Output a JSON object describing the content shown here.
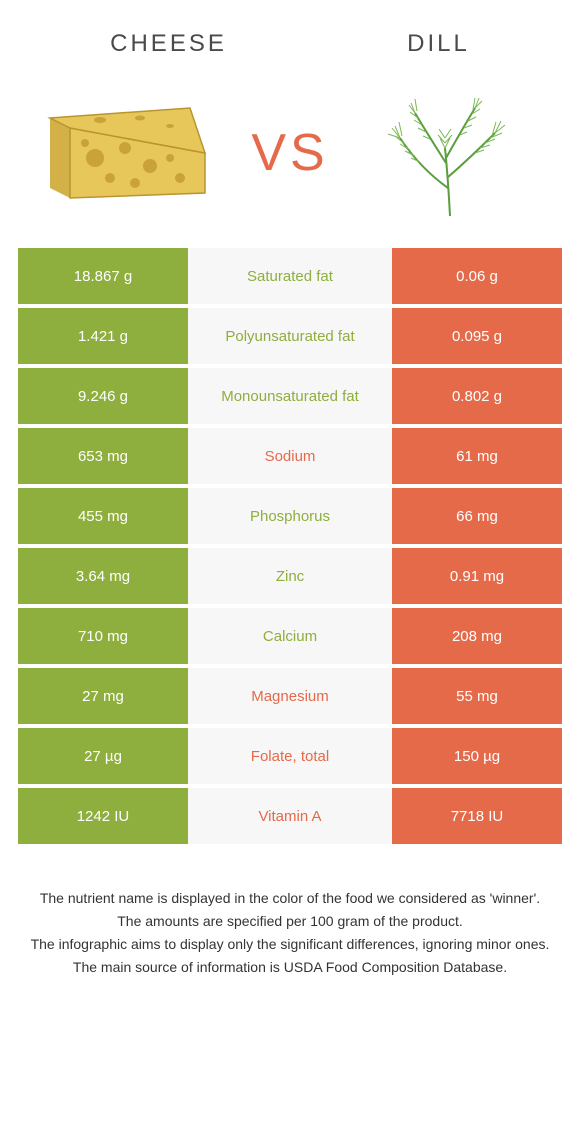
{
  "header": {
    "left_title": "Cheese",
    "right_title": "Dill",
    "vs": "VS"
  },
  "colors": {
    "cheese_bg": "#8eae3e",
    "dill_bg": "#e46a4a",
    "mid_bg": "#f7f7f7",
    "label_cheese": "#8eae3e",
    "label_dill": "#e46a4a",
    "cell_text": "#ffffff"
  },
  "rows": [
    {
      "left": "18.867 g",
      "label": "Saturated fat",
      "right": "0.06 g",
      "winner": "cheese"
    },
    {
      "left": "1.421 g",
      "label": "Polyunsaturated fat",
      "right": "0.095 g",
      "winner": "cheese"
    },
    {
      "left": "9.246 g",
      "label": "Monounsaturated fat",
      "right": "0.802 g",
      "winner": "cheese"
    },
    {
      "left": "653 mg",
      "label": "Sodium",
      "right": "61 mg",
      "winner": "dill"
    },
    {
      "left": "455 mg",
      "label": "Phosphorus",
      "right": "66 mg",
      "winner": "cheese"
    },
    {
      "left": "3.64 mg",
      "label": "Zinc",
      "right": "0.91 mg",
      "winner": "cheese"
    },
    {
      "left": "710 mg",
      "label": "Calcium",
      "right": "208 mg",
      "winner": "cheese"
    },
    {
      "left": "27 mg",
      "label": "Magnesium",
      "right": "55 mg",
      "winner": "dill"
    },
    {
      "left": "27 µg",
      "label": "Folate, total",
      "right": "150 µg",
      "winner": "dill"
    },
    {
      "left": "1242 IU",
      "label": "Vitamin A",
      "right": "7718 IU",
      "winner": "dill"
    }
  ],
  "footer": {
    "line1": "The nutrient name is displayed in the color of the food we considered as 'winner'.",
    "line2": "The amounts are specified per 100 gram of the product.",
    "line3": "The infographic aims to display only the significant differences, ignoring minor ones.",
    "line4": "The main source of information is USDA Food Composition Database."
  }
}
